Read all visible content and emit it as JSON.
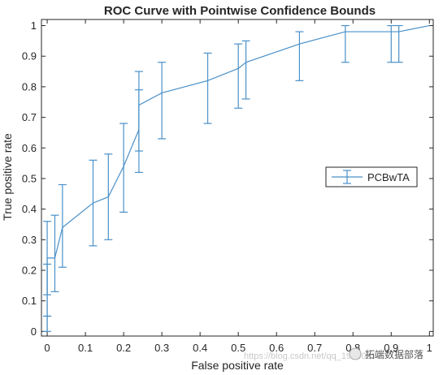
{
  "chart_data": {
    "type": "line",
    "title": "ROC Curve with Pointwise Confidence Bounds",
    "xlabel": "False positive rate",
    "ylabel": "True positive rate",
    "xlim": [
      0,
      1
    ],
    "ylim": [
      0,
      1
    ],
    "xticks": [
      "0",
      "0.1",
      "0.2",
      "0.3",
      "0.4",
      "0.5",
      "0.6",
      "0.7",
      "0.8",
      "0.9",
      "1"
    ],
    "yticks": [
      "0",
      "0.1",
      "0.2",
      "0.3",
      "0.4",
      "0.5",
      "0.6",
      "0.7",
      "0.8",
      "0.9",
      "1"
    ],
    "grid": false,
    "legend_position": "right",
    "series": [
      {
        "name": "PCBwTA",
        "color": "#4a90c8",
        "points": [
          {
            "x": 0.0,
            "y": 0.0,
            "lo": 0.0,
            "hi": 0.05
          },
          {
            "x": 0.0,
            "y": 0.22,
            "lo": 0.05,
            "hi": 0.36
          },
          {
            "x": 0.0,
            "y": 0.24,
            "lo": 0.12,
            "hi": 0.22
          },
          {
            "x": 0.02,
            "y": 0.24,
            "lo": 0.13,
            "hi": 0.38
          },
          {
            "x": 0.04,
            "y": 0.34,
            "lo": 0.21,
            "hi": 0.48
          },
          {
            "x": 0.12,
            "y": 0.42,
            "lo": 0.28,
            "hi": 0.56
          },
          {
            "x": 0.16,
            "y": 0.44,
            "lo": 0.3,
            "hi": 0.58
          },
          {
            "x": 0.2,
            "y": 0.54,
            "lo": 0.39,
            "hi": 0.68
          },
          {
            "x": 0.24,
            "y": 0.66,
            "lo": 0.52,
            "hi": 0.79
          },
          {
            "x": 0.24,
            "y": 0.74,
            "lo": 0.59,
            "hi": 0.85
          },
          {
            "x": 0.3,
            "y": 0.78,
            "lo": 0.63,
            "hi": 0.88
          },
          {
            "x": 0.42,
            "y": 0.82,
            "lo": 0.68,
            "hi": 0.91
          },
          {
            "x": 0.5,
            "y": 0.86,
            "lo": 0.73,
            "hi": 0.94
          },
          {
            "x": 0.52,
            "y": 0.88,
            "lo": 0.76,
            "hi": 0.95
          },
          {
            "x": 0.66,
            "y": 0.94,
            "lo": 0.82,
            "hi": 0.98
          },
          {
            "x": 0.78,
            "y": 0.98,
            "lo": 0.88,
            "hi": 1.0
          },
          {
            "x": 0.9,
            "y": 0.98,
            "lo": 0.88,
            "hi": 1.0
          },
          {
            "x": 0.92,
            "y": 0.98,
            "lo": 0.88,
            "hi": 1.0
          },
          {
            "x": 1.0,
            "y": 1.0,
            "lo": 1.0,
            "hi": 1.0
          }
        ]
      }
    ]
  },
  "watermark": {
    "url": "https://blog.csdn.net/qq_19600291",
    "brand": "拓端数据部落"
  }
}
